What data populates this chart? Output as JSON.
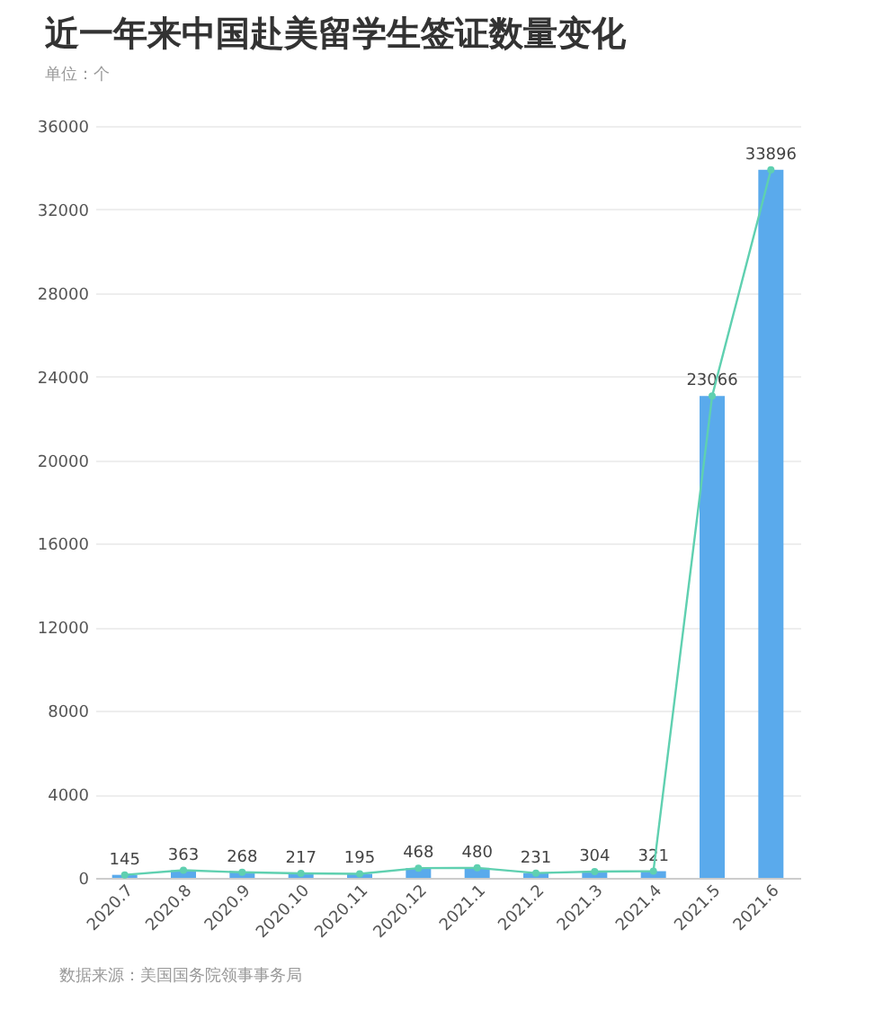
{
  "chart_data": {
    "type": "bar",
    "title": "近一年来中国赴美留学生签证数量变化",
    "subtitle": "单位：个",
    "annotations": [
      "数据来源：美国国务院领事事务局"
    ],
    "categories": [
      "2020.7",
      "2020.8",
      "2020.9",
      "2020.10",
      "2020.11",
      "2020.12",
      "2021.1",
      "2021.2",
      "2021.3",
      "2021.4",
      "2021.5",
      "2021.6"
    ],
    "series": [
      {
        "color": "#5aaaec",
        "values": [
          145,
          363,
          268,
          217,
          195,
          468,
          480,
          231,
          304,
          321,
          23066,
          33896
        ],
        "value_labels": [
          "145",
          "363",
          "268",
          "217",
          "195",
          "468",
          "480",
          "231",
          "304",
          "321",
          "23066",
          "33896"
        ]
      },
      {
        "type": "line",
        "color": "#5fd0b0",
        "values": [
          145,
          363,
          268,
          217,
          195,
          468,
          480,
          231,
          304,
          321,
          23066,
          33896
        ]
      }
    ],
    "ylim": [
      0,
      36000
    ],
    "yticks": [
      0,
      4000,
      8000,
      12000,
      16000,
      20000,
      24000,
      28000,
      32000,
      36000
    ],
    "grid": "y",
    "marker": "circle"
  }
}
